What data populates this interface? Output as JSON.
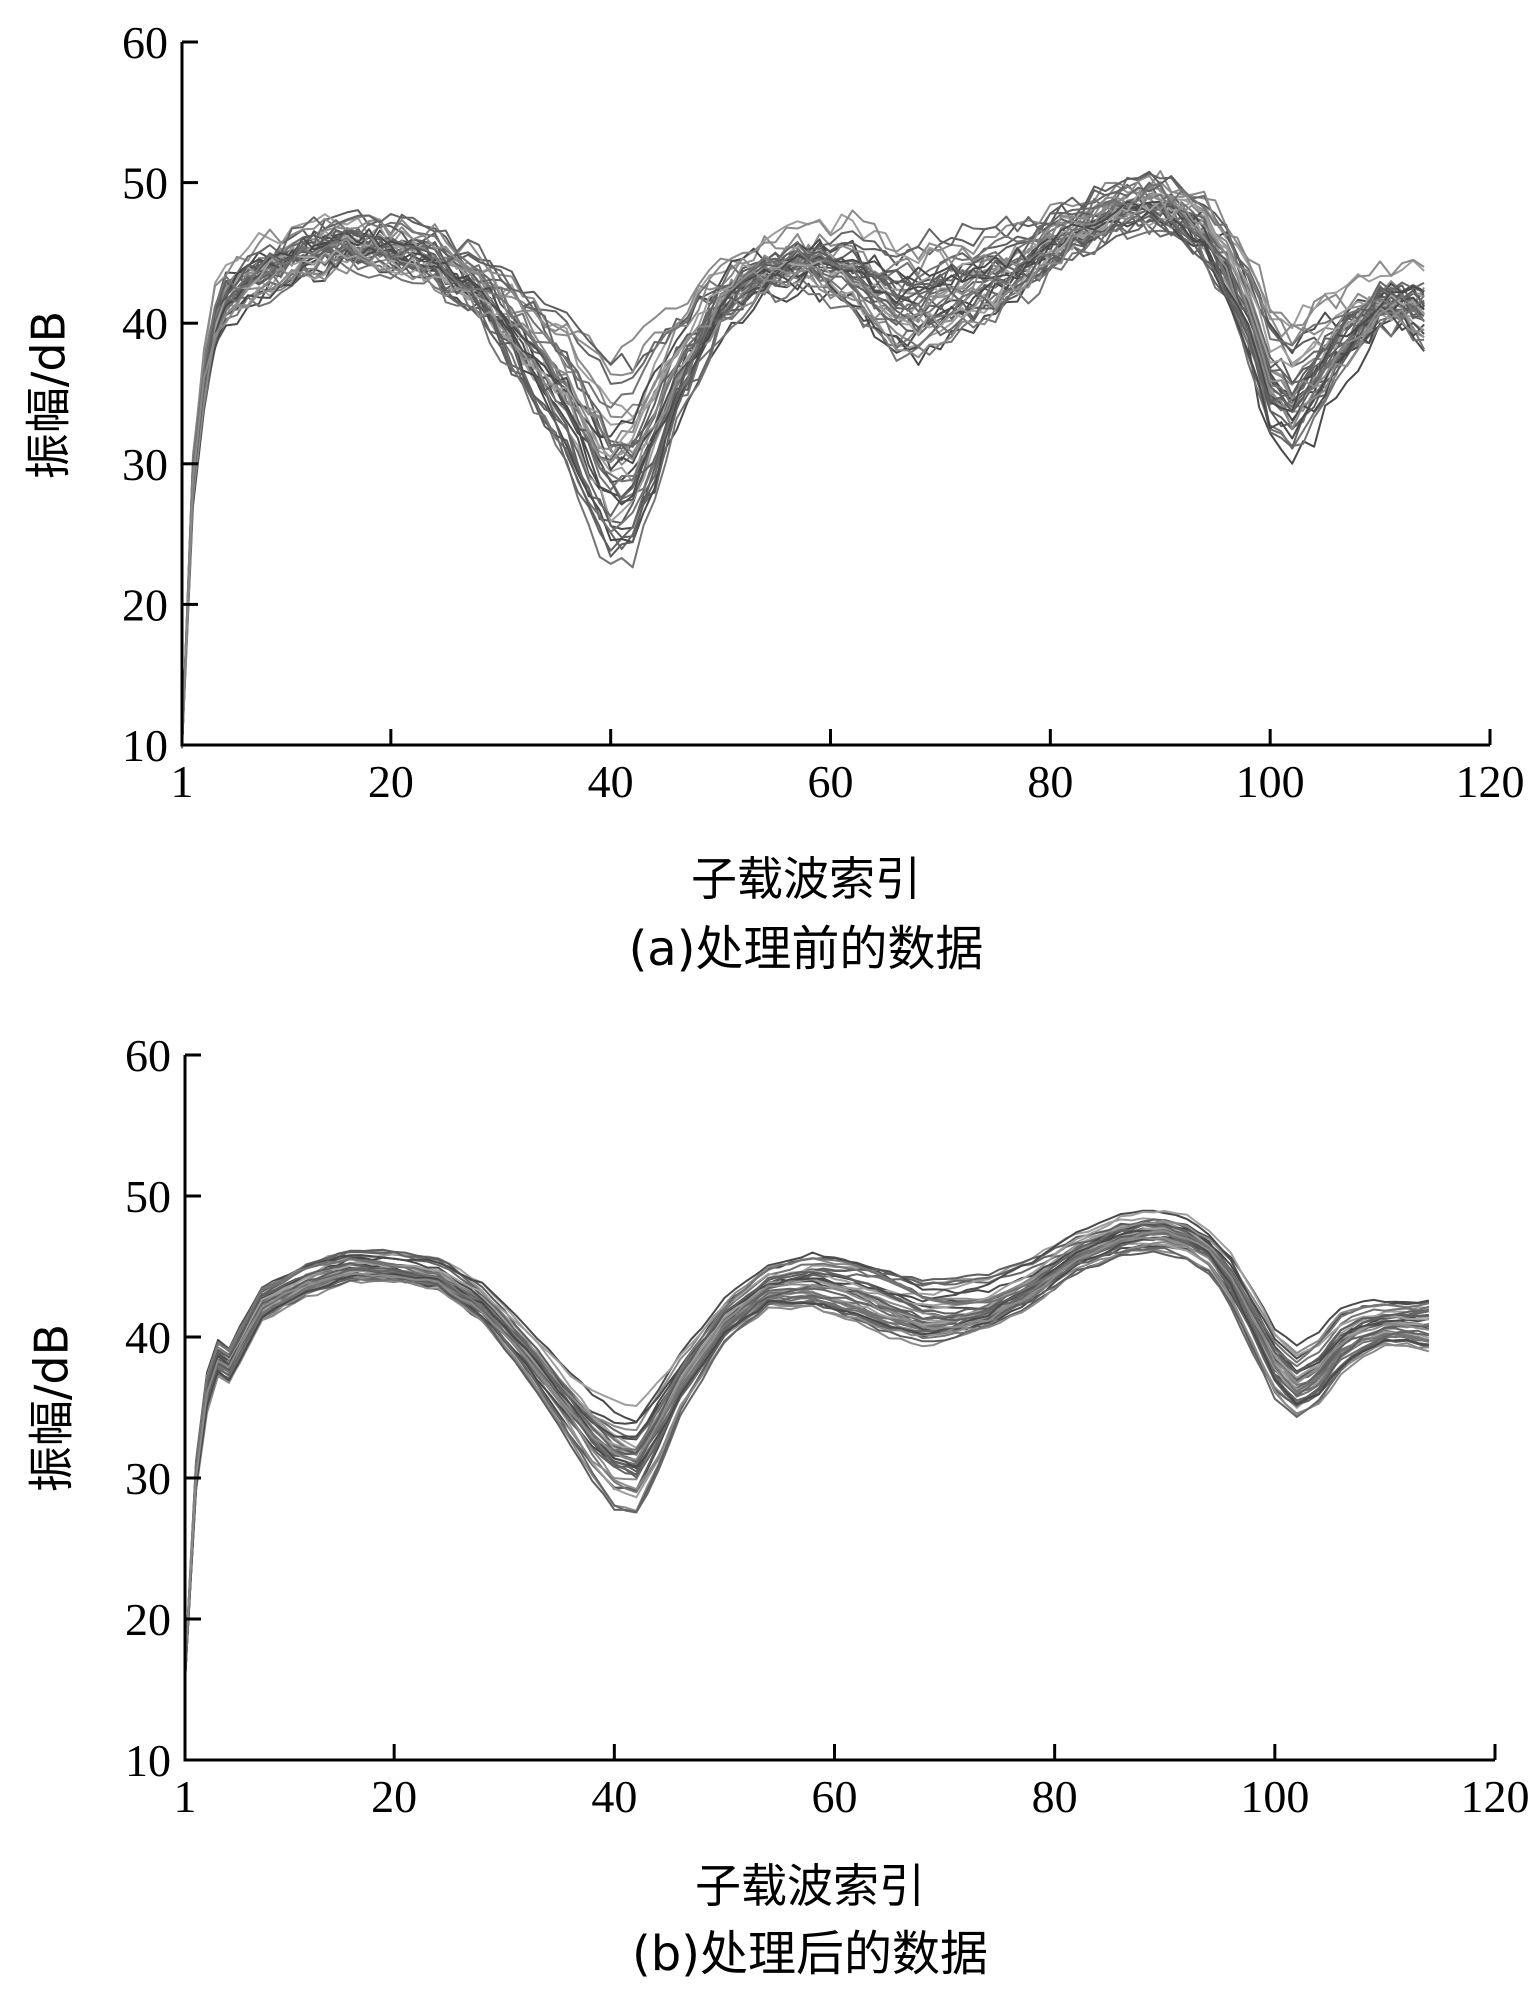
{
  "chart_data": [
    {
      "type": "line",
      "caption": "(a)处理前的数据",
      "xlabel": "子载波索引",
      "ylabel": "振幅/dB",
      "xlim": [
        1,
        120
      ],
      "ylim": [
        10,
        60
      ],
      "xticks": [
        1,
        20,
        40,
        60,
        80,
        100,
        120
      ],
      "yticks": [
        10,
        20,
        30,
        40,
        50,
        60
      ],
      "grid": false,
      "series_count": 40,
      "series_x_range": [
        1,
        114
      ],
      "series_colors": [
        "#4a4a4a",
        "#5e5e5e",
        "#737373",
        "#8a8a8a",
        "#9e9e9e",
        "#666666"
      ],
      "x": [
        1,
        2,
        3,
        4,
        5,
        8,
        12,
        16,
        20,
        24,
        28,
        32,
        36,
        38,
        40,
        42,
        44,
        46,
        50,
        54,
        58,
        62,
        64,
        66,
        68,
        70,
        74,
        78,
        82,
        86,
        88,
        90,
        92,
        94,
        96,
        98,
        100,
        102,
        104,
        106,
        108,
        110,
        112,
        114
      ],
      "mean_profile": [
        10,
        29,
        36,
        40,
        42,
        43.5,
        45,
        45.8,
        45.3,
        44.5,
        42.5,
        39,
        35,
        32,
        29.5,
        30,
        33,
        36.5,
        41.5,
        43.8,
        44.5,
        43.8,
        42.5,
        41.5,
        41.5,
        42,
        43,
        44.5,
        46.5,
        48,
        48.5,
        48.3,
        47.8,
        46.5,
        44,
        41,
        36,
        35,
        36.5,
        38.5,
        40,
        41.5,
        41.5,
        41
      ],
      "spread": [
        0,
        1,
        1.2,
        1.5,
        1.5,
        1.5,
        1.5,
        1.5,
        1.5,
        1.5,
        2,
        3,
        4.5,
        5.5,
        6,
        6,
        5,
        3.5,
        2,
        1.5,
        1.5,
        2.5,
        3,
        3.5,
        3.5,
        3,
        2.5,
        2,
        1.5,
        1.5,
        1.5,
        1.5,
        1.5,
        2,
        2.5,
        3,
        4,
        4,
        3.5,
        2.5,
        2,
        1.5,
        1.5,
        2
      ]
    },
    {
      "type": "line",
      "caption": "(b)处理后的数据",
      "xlabel": "子载波索引",
      "ylabel": "振幅/dB",
      "xlim": [
        1,
        120
      ],
      "ylim": [
        10,
        60
      ],
      "xticks": [
        1,
        20,
        40,
        60,
        80,
        100,
        120
      ],
      "yticks": [
        10,
        20,
        30,
        40,
        50,
        60
      ],
      "grid": false,
      "series_count": 40,
      "series_x_range": [
        1,
        114
      ],
      "series_colors": [
        "#4a4a4a",
        "#5e5e5e",
        "#737373",
        "#8a8a8a",
        "#9e9e9e",
        "#666666"
      ],
      "x": [
        1,
        2,
        3,
        4,
        5,
        8,
        12,
        16,
        20,
        24,
        28,
        32,
        36,
        38,
        40,
        42,
        44,
        46,
        50,
        54,
        58,
        62,
        64,
        66,
        68,
        70,
        74,
        78,
        82,
        86,
        88,
        90,
        92,
        94,
        96,
        98,
        100,
        102,
        104,
        106,
        108,
        110,
        112,
        114
      ],
      "mean_profile": [
        16,
        30,
        36,
        38.5,
        38,
        42.5,
        44.2,
        45.2,
        45,
        44.5,
        42.5,
        39,
        35,
        33,
        31.5,
        31,
        33.5,
        36.5,
        41,
        43.5,
        44,
        43.5,
        43,
        42.5,
        42,
        42,
        42.5,
        44,
        46,
        47.2,
        47.5,
        47.5,
        47,
        46,
        44,
        41,
        38,
        36.5,
        37.5,
        39.5,
        40.5,
        41,
        41,
        41
      ],
      "spread": [
        0,
        0.8,
        1,
        1,
        1,
        1,
        1,
        1,
        1,
        1,
        1.2,
        1.5,
        2,
        2.5,
        3,
        3,
        2.5,
        1.8,
        1.2,
        1.2,
        1.5,
        1.8,
        2,
        2,
        2,
        2,
        1.8,
        1.5,
        1.2,
        1.2,
        1.2,
        1.2,
        1.2,
        1.2,
        1.5,
        1.8,
        2,
        2,
        2,
        1.8,
        1.5,
        1.2,
        1.2,
        1.5
      ]
    }
  ]
}
